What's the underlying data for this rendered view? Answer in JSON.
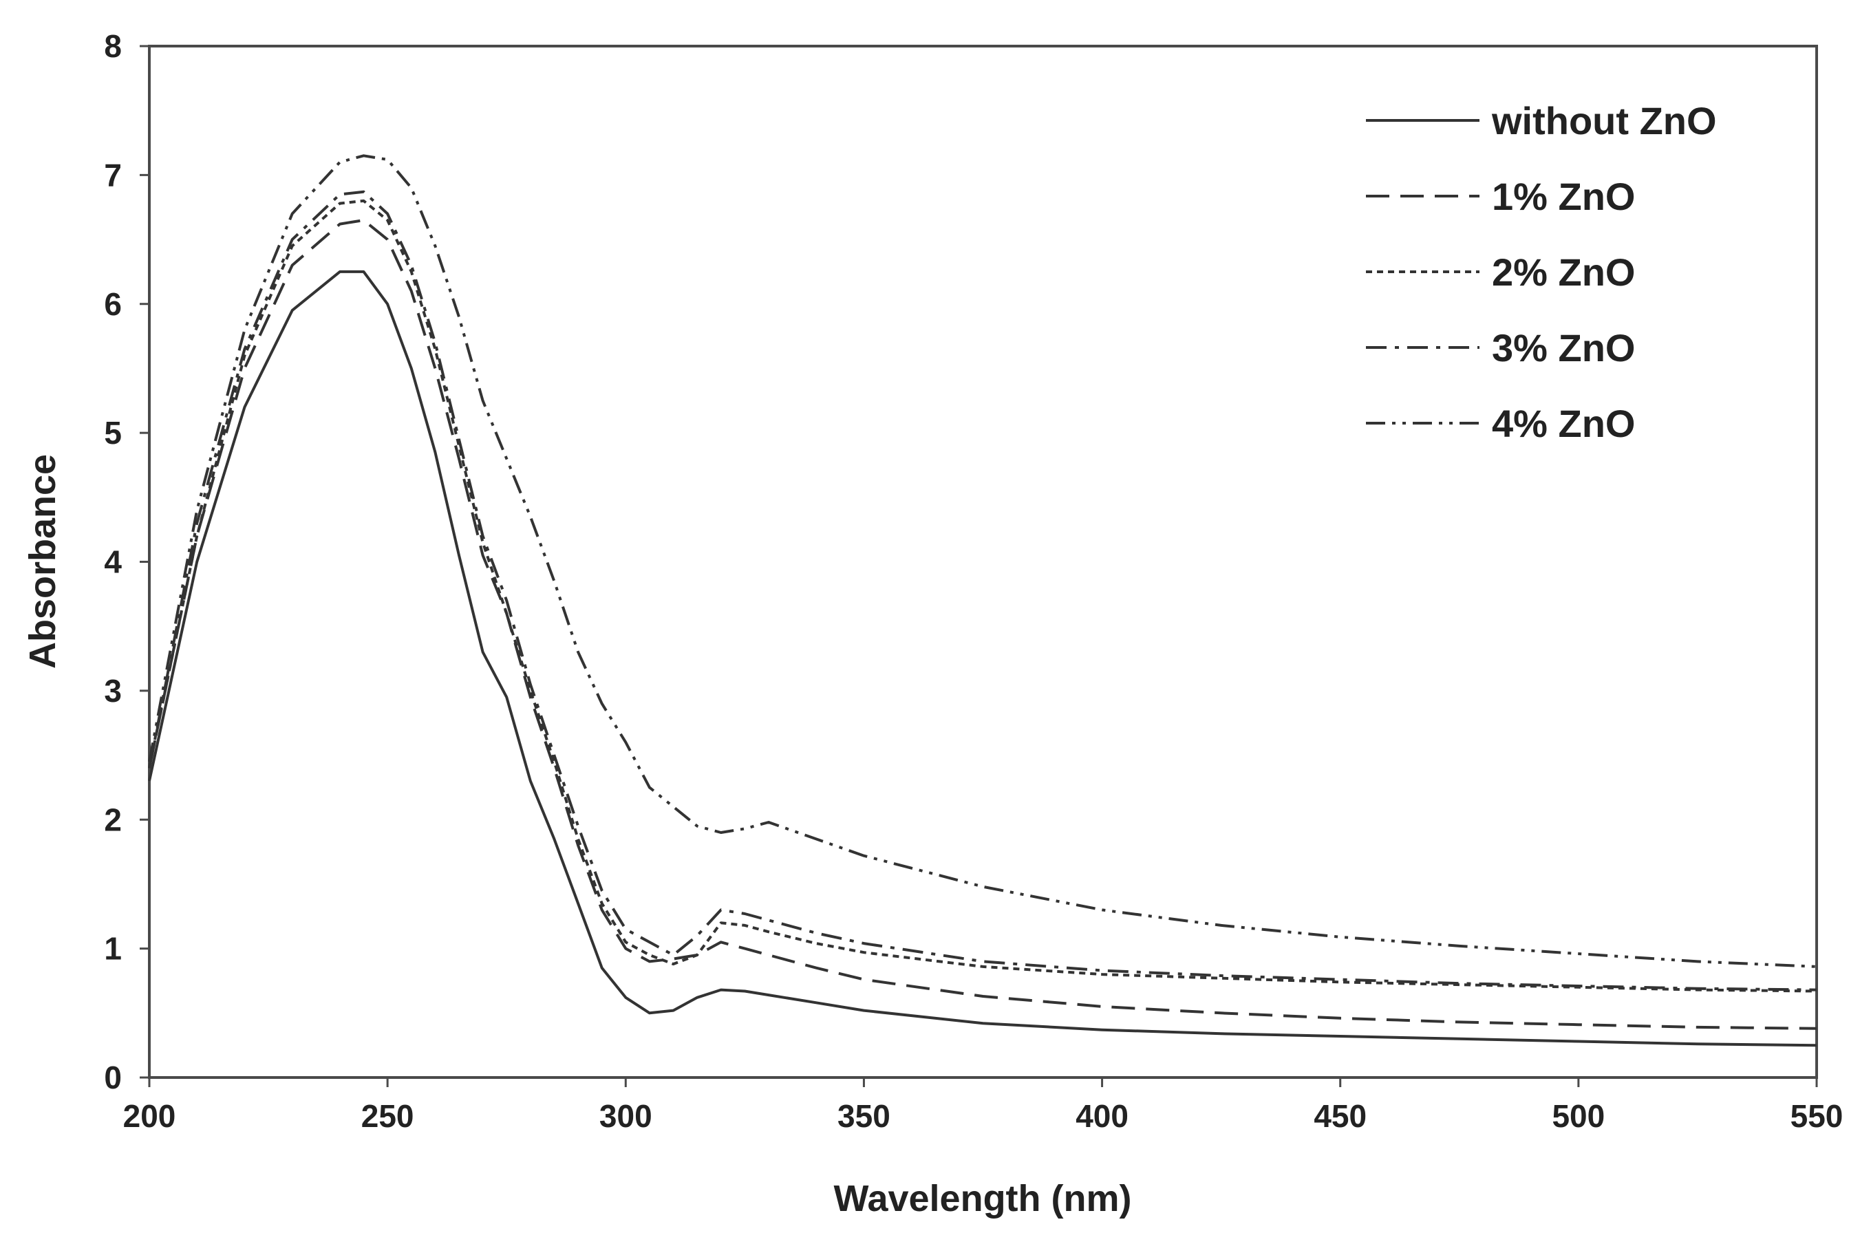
{
  "chart_data": {
    "type": "line",
    "title": "",
    "xlabel": "Wavelength (nm)",
    "ylabel": "Absorbance",
    "xlim": [
      200,
      550
    ],
    "ylim": [
      0,
      8
    ],
    "x_ticks": [
      200,
      250,
      300,
      350,
      400,
      450,
      500,
      550
    ],
    "y_ticks": [
      0,
      1,
      2,
      3,
      4,
      5,
      6,
      7,
      8
    ],
    "grid": false,
    "legend_position": "top-right",
    "series": [
      {
        "name": "without ZnO",
        "style": "solid",
        "x": [
          200,
          210,
          220,
          230,
          240,
          245,
          250,
          255,
          260,
          265,
          270,
          275,
          280,
          285,
          290,
          295,
          300,
          305,
          310,
          315,
          320,
          325,
          330,
          340,
          350,
          375,
          400,
          425,
          450,
          475,
          500,
          525,
          550
        ],
        "y": [
          2.3,
          4.0,
          5.2,
          5.95,
          6.25,
          6.25,
          6.0,
          5.5,
          4.85,
          4.05,
          3.3,
          2.95,
          2.3,
          1.85,
          1.35,
          0.85,
          0.62,
          0.5,
          0.52,
          0.62,
          0.68,
          0.67,
          0.64,
          0.58,
          0.52,
          0.42,
          0.37,
          0.34,
          0.32,
          0.3,
          0.28,
          0.26,
          0.25
        ]
      },
      {
        "name": "1% ZnO",
        "style": "dash",
        "x": [
          200,
          210,
          220,
          230,
          240,
          245,
          250,
          255,
          260,
          265,
          270,
          275,
          280,
          285,
          290,
          295,
          300,
          305,
          310,
          315,
          320,
          325,
          330,
          340,
          350,
          375,
          400,
          425,
          450,
          475,
          500,
          525,
          550
        ],
        "y": [
          2.4,
          4.2,
          5.5,
          6.3,
          6.62,
          6.65,
          6.5,
          6.1,
          5.5,
          4.8,
          4.05,
          3.6,
          2.95,
          2.4,
          1.8,
          1.3,
          1.0,
          0.9,
          0.92,
          0.95,
          1.05,
          1.0,
          0.95,
          0.85,
          0.76,
          0.63,
          0.55,
          0.5,
          0.46,
          0.43,
          0.41,
          0.39,
          0.38
        ]
      },
      {
        "name": "2% ZnO",
        "style": "dot",
        "x": [
          200,
          210,
          220,
          230,
          240,
          245,
          250,
          255,
          260,
          265,
          270,
          275,
          280,
          285,
          290,
          295,
          300,
          305,
          310,
          315,
          320,
          325,
          330,
          340,
          350,
          375,
          400,
          425,
          450,
          475,
          500,
          525,
          550
        ],
        "y": [
          2.4,
          4.2,
          5.6,
          6.45,
          6.78,
          6.8,
          6.65,
          6.25,
          5.65,
          4.9,
          4.15,
          3.6,
          3.0,
          2.45,
          1.85,
          1.35,
          1.05,
          0.95,
          0.88,
          0.95,
          1.2,
          1.18,
          1.13,
          1.04,
          0.97,
          0.86,
          0.8,
          0.77,
          0.74,
          0.72,
          0.7,
          0.68,
          0.67
        ]
      },
      {
        "name": "3% ZnO",
        "style": "dashdot",
        "x": [
          200,
          210,
          220,
          230,
          240,
          245,
          250,
          255,
          260,
          265,
          270,
          275,
          280,
          285,
          290,
          295,
          300,
          305,
          310,
          315,
          320,
          325,
          330,
          340,
          350,
          375,
          400,
          425,
          450,
          475,
          500,
          525,
          550
        ],
        "y": [
          2.4,
          4.3,
          5.65,
          6.5,
          6.85,
          6.87,
          6.7,
          6.3,
          5.7,
          4.95,
          4.2,
          3.7,
          3.05,
          2.5,
          1.95,
          1.45,
          1.15,
          1.05,
          0.95,
          1.1,
          1.3,
          1.27,
          1.22,
          1.12,
          1.04,
          0.9,
          0.83,
          0.79,
          0.76,
          0.73,
          0.71,
          0.69,
          0.68
        ]
      },
      {
        "name": "4% ZnO",
        "style": "dashdotdot",
        "x": [
          200,
          210,
          220,
          230,
          240,
          245,
          250,
          255,
          260,
          265,
          270,
          275,
          280,
          285,
          290,
          295,
          300,
          305,
          310,
          315,
          320,
          325,
          330,
          340,
          350,
          375,
          400,
          425,
          450,
          475,
          500,
          525,
          550
        ],
        "y": [
          2.45,
          4.4,
          5.8,
          6.7,
          7.1,
          7.15,
          7.12,
          6.9,
          6.45,
          5.9,
          5.25,
          4.8,
          4.35,
          3.85,
          3.3,
          2.9,
          2.6,
          2.25,
          2.1,
          1.95,
          1.9,
          1.93,
          1.98,
          1.85,
          1.72,
          1.48,
          1.3,
          1.18,
          1.09,
          1.02,
          0.96,
          0.9,
          0.86
        ]
      }
    ]
  }
}
